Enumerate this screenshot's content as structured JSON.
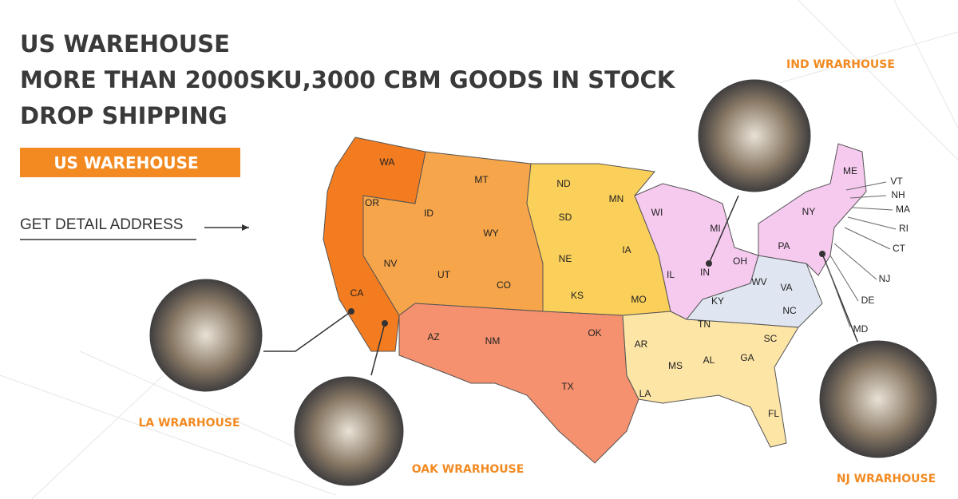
{
  "header": {
    "lines": [
      "US WAREHOUSE",
      "MORE THAN 2000SKU,3000 CBM GOODS IN STOCK",
      "DROP SHIPPING"
    ]
  },
  "button": {
    "label": "US WAREHOUSE"
  },
  "link": {
    "label": "GET DETAIL ADDRESS"
  },
  "map": {
    "states": [
      "WA",
      "OR",
      "CA",
      "ID",
      "NV",
      "UT",
      "AZ",
      "MT",
      "WY",
      "CO",
      "NM",
      "ND",
      "SD",
      "NE",
      "KS",
      "OK",
      "TX",
      "MN",
      "IA",
      "MO",
      "AR",
      "LA",
      "WI",
      "IL",
      "MI",
      "IN",
      "OH",
      "KY",
      "TN",
      "MS",
      "AL",
      "GA",
      "FL",
      "SC",
      "NC",
      "WV",
      "VA",
      "PA",
      "NY",
      "ME",
      "VT",
      "NH",
      "MA",
      "RI",
      "CT",
      "NJ",
      "DE",
      "MD"
    ]
  },
  "warehouses": [
    {
      "label": "IND WRARHOUSE"
    },
    {
      "label": "LA WRARHOUSE"
    },
    {
      "label": "OAK WRARHOUSE"
    },
    {
      "label": "NJ WRARHOUSE"
    }
  ]
}
